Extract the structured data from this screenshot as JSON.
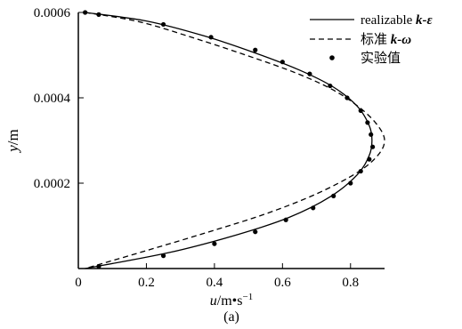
{
  "chart_data": {
    "type": "line",
    "xlabel_var": "u",
    "xlabel_unit": "/m•s",
    "xlabel_exp": "−1",
    "ylabel_var": "y",
    "ylabel_unit": "/m",
    "caption": "(a)",
    "xlim": [
      0,
      0.9
    ],
    "ylim": [
      0,
      0.0006
    ],
    "xticks": [
      {
        "value": 0,
        "label": "0"
      },
      {
        "value": 0.2,
        "label": "0.2"
      },
      {
        "value": 0.4,
        "label": "0.4"
      },
      {
        "value": 0.6,
        "label": "0.6"
      },
      {
        "value": 0.8,
        "label": "0.8"
      }
    ],
    "yticks": [
      {
        "value": 0.0002,
        "label": "0.0002"
      },
      {
        "value": 0.0004,
        "label": "0.0004"
      },
      {
        "value": 0.0006,
        "label": "0.0006"
      }
    ],
    "legend_position": "top-right",
    "series": [
      {
        "name_text": "realizable ",
        "name_math": "k-ε",
        "style": "solid",
        "x": [
          0.02,
          0.2,
          0.37,
          0.52,
          0.65,
          0.75,
          0.82,
          0.855,
          0.863,
          0.855,
          0.82,
          0.74,
          0.62,
          0.47,
          0.27,
          0.02
        ],
        "y": [
          0.0006,
          0.00058,
          0.000545,
          0.000505,
          0.000465,
          0.000425,
          0.00038,
          0.000335,
          0.0003,
          0.000265,
          0.00022,
          0.000168,
          0.00012,
          8e-05,
          3.8e-05,
          0
        ]
      },
      {
        "name_text": "标准 ",
        "name_math": "k-ω",
        "style": "dashed",
        "x": [
          0.02,
          0.18,
          0.34,
          0.5,
          0.64,
          0.75,
          0.83,
          0.88,
          0.9,
          0.88,
          0.82,
          0.7,
          0.55,
          0.38,
          0.2,
          0.02
        ],
        "y": [
          0.0006,
          0.000578,
          0.00054,
          0.000498,
          0.000458,
          0.000418,
          0.000375,
          0.000335,
          0.0003,
          0.000265,
          0.000225,
          0.000175,
          0.000128,
          8.5e-05,
          4.2e-05,
          0
        ]
      },
      {
        "name_text": "实验值",
        "name_math": "",
        "style": "points",
        "x": [
          0.02,
          0.06,
          0.25,
          0.39,
          0.52,
          0.6,
          0.68,
          0.74,
          0.79,
          0.83,
          0.85,
          0.86,
          0.865,
          0.855,
          0.83,
          0.8,
          0.75,
          0.69,
          0.61,
          0.52,
          0.4,
          0.25,
          0.06
        ],
        "y": [
          0.0006,
          0.000595,
          0.000572,
          0.000542,
          0.000512,
          0.000484,
          0.000456,
          0.000428,
          0.0004,
          0.00037,
          0.000342,
          0.000314,
          0.000285,
          0.000256,
          0.000228,
          0.0002,
          0.00017,
          0.000142,
          0.000114,
          8.6e-05,
          5.8e-05,
          3e-05,
          5e-06
        ]
      }
    ]
  }
}
